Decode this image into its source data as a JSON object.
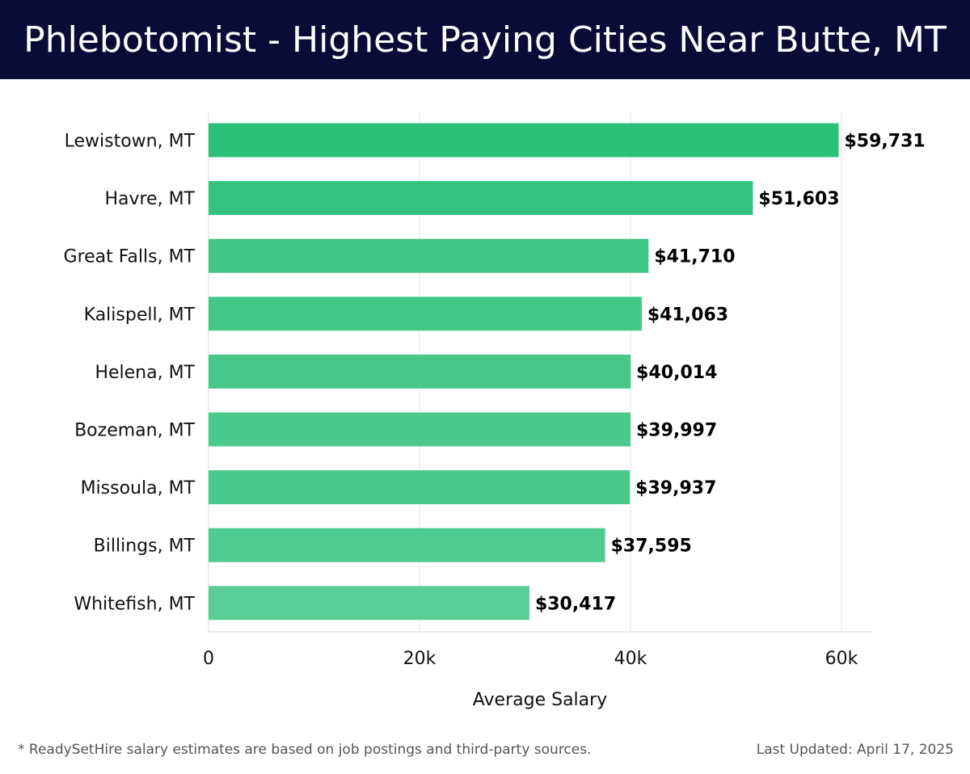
{
  "header": {
    "title": "Phlebotomist - Highest Paying Cities Near Butte, MT"
  },
  "footer": {
    "note": "* ReadySetHire salary estimates are based on job postings and third-party sources.",
    "updated": "Last Updated: April 17, 2025"
  },
  "chart_data": {
    "type": "bar",
    "orientation": "horizontal",
    "title": "Phlebotomist - Highest Paying Cities Near Butte, MT",
    "xlabel": "Average Salary",
    "ylabel": "",
    "xlim": [
      0,
      63000
    ],
    "xticks": [
      0,
      20000,
      40000,
      60000
    ],
    "xtick_labels": [
      "0",
      "20k",
      "40k",
      "60k"
    ],
    "grid": "vertical",
    "categories": [
      "Lewistown, MT",
      "Havre, MT",
      "Great Falls, MT",
      "Kalispell, MT",
      "Helena, MT",
      "Bozeman, MT",
      "Missoula, MT",
      "Billings, MT",
      "Whitefish, MT"
    ],
    "values": [
      59731,
      51603,
      41710,
      41063,
      40014,
      39997,
      39937,
      37595,
      30417
    ],
    "value_labels": [
      "$59,731",
      "$51,603",
      "$41,710",
      "$41,063",
      "$40,014",
      "$39,997",
      "$39,937",
      "$37,595",
      "$30,417"
    ],
    "colors": [
      "#2bbf78",
      "#34c37e",
      "#3fc584",
      "#43c787",
      "#47c88a",
      "#49c98b",
      "#4ac98c",
      "#50cb90",
      "#5bcd97"
    ]
  }
}
